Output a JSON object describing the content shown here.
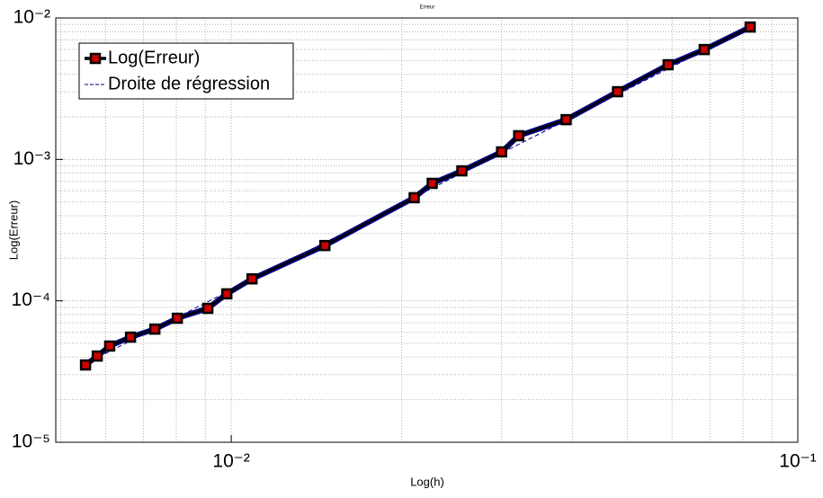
{
  "chart_data": {
    "type": "line",
    "title": "Erreur",
    "x_label": "Log(h)",
    "y_label": "Log(Erreur)",
    "log_x": true,
    "log_y": true,
    "grid": true,
    "legend": "upper left",
    "xlim": [
      0.0049,
      0.1
    ],
    "ylim": [
      1e-05,
      0.01
    ],
    "xticks": [
      {
        "value": 0.01,
        "label": "10⁻²"
      },
      {
        "value": 0.1,
        "label": "10⁻¹"
      }
    ],
    "yticks": [
      {
        "value": 1e-05,
        "label": "10⁻⁵"
      },
      {
        "value": 0.0001,
        "label": "10⁻⁴"
      },
      {
        "value": 0.001,
        "label": "10⁻³"
      },
      {
        "value": 0.01,
        "label": "10⁻²"
      }
    ],
    "series": [
      {
        "name": "Log(Erreur)",
        "color": "#000000",
        "marker_color": "#cc0000",
        "linestyle": "solid",
        "x": [
          0.00553,
          0.0058,
          0.0061,
          0.00664,
          0.00733,
          0.00803,
          0.00909,
          0.00982,
          0.01088,
          0.01463,
          0.02103,
          0.02263,
          0.02553,
          0.03,
          0.03216,
          0.039,
          0.04806,
          0.05902,
          0.06836,
          0.0824
        ],
        "values": [
          3.52e-05,
          4.07e-05,
          4.79e-05,
          5.54e-05,
          6.31e-05,
          7.53e-05,
          8.85e-05,
          0.000112,
          0.000143,
          0.000246,
          0.000536,
          0.000677,
          0.00083,
          0.00113,
          0.00147,
          0.00191,
          0.00301,
          0.00467,
          0.00598,
          0.00863
        ]
      },
      {
        "name": "Droite de régression",
        "color": "#000080",
        "linestyle": "dashed",
        "x": [
          0.00553,
          0.0824
        ],
        "values": [
          3.6e-05,
          0.0086
        ]
      }
    ]
  }
}
